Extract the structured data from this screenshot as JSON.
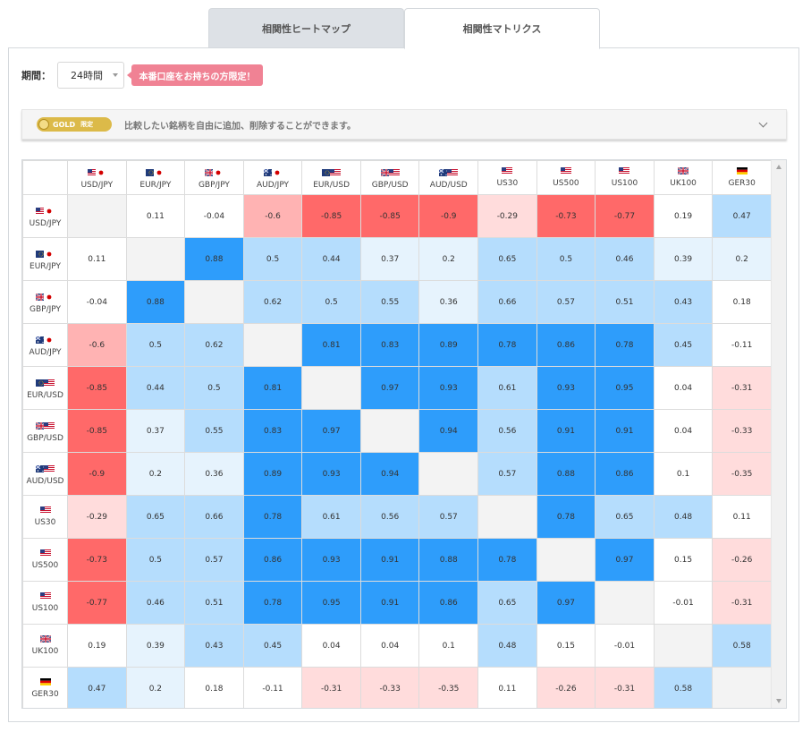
{
  "tabs": [
    {
      "label": "相関性ヒートマップ",
      "active": false
    },
    {
      "label": "相関性マトリクス",
      "active": true
    }
  ],
  "period": {
    "label": "期間：",
    "value": "24時間"
  },
  "notice": "本番口座をお持ちの方限定！",
  "gold": {
    "badge": "GOLD",
    "limited": "限定",
    "text": "比較したい銘柄を自由に追加、削除することができます。"
  },
  "colors": {
    "strong_neg": "#ff6969",
    "mid_neg": "#ffb3b3",
    "weak_neg": "#ffdcdc",
    "neutral": "#ffffff",
    "weak_pos": "#e6f3fd",
    "mid_pos": "#b5ddfd",
    "strong_pos": "#2e9dfb",
    "diagonal": "#f3f3f3"
  },
  "instruments": [
    {
      "label": "USD/JPY",
      "flags": [
        "us",
        "jp"
      ]
    },
    {
      "label": "EUR/JPY",
      "flags": [
        "eu",
        "jp"
      ]
    },
    {
      "label": "GBP/JPY",
      "flags": [
        "gb",
        "jp"
      ]
    },
    {
      "label": "AUD/JPY",
      "flags": [
        "au",
        "jp"
      ]
    },
    {
      "label": "EUR/USD",
      "flags": [
        "eu",
        "us"
      ]
    },
    {
      "label": "GBP/USD",
      "flags": [
        "gb",
        "us"
      ]
    },
    {
      "label": "AUD/USD",
      "flags": [
        "au",
        "us"
      ]
    },
    {
      "label": "US30",
      "flags": [
        "us"
      ]
    },
    {
      "label": "US500",
      "flags": [
        "us"
      ]
    },
    {
      "label": "US100",
      "flags": [
        "us"
      ]
    },
    {
      "label": "UK100",
      "flags": [
        "gb"
      ]
    },
    {
      "label": "GER30",
      "flags": [
        "de"
      ]
    }
  ],
  "matrix": [
    [
      null,
      0.11,
      -0.04,
      -0.6,
      -0.85,
      -0.85,
      -0.9,
      -0.29,
      -0.73,
      -0.77,
      0.19,
      0.47
    ],
    [
      0.11,
      null,
      0.88,
      0.5,
      0.44,
      0.37,
      0.2,
      0.65,
      0.5,
      0.46,
      0.39,
      0.2
    ],
    [
      -0.04,
      0.88,
      null,
      0.62,
      0.5,
      0.55,
      0.36,
      0.66,
      0.57,
      0.51,
      0.43,
      0.18
    ],
    [
      -0.6,
      0.5,
      0.62,
      null,
      0.81,
      0.83,
      0.89,
      0.78,
      0.86,
      0.78,
      0.45,
      -0.11
    ],
    [
      -0.85,
      0.44,
      0.5,
      0.81,
      null,
      0.97,
      0.93,
      0.61,
      0.93,
      0.95,
      0.04,
      -0.31
    ],
    [
      -0.85,
      0.37,
      0.55,
      0.83,
      0.97,
      null,
      0.94,
      0.56,
      0.91,
      0.91,
      0.04,
      -0.33
    ],
    [
      -0.9,
      0.2,
      0.36,
      0.89,
      0.93,
      0.94,
      null,
      0.57,
      0.88,
      0.86,
      0.1,
      -0.35
    ],
    [
      -0.29,
      0.65,
      0.66,
      0.78,
      0.61,
      0.56,
      0.57,
      null,
      0.78,
      0.65,
      0.48,
      0.11
    ],
    [
      -0.73,
      0.5,
      0.57,
      0.86,
      0.93,
      0.91,
      0.88,
      0.78,
      null,
      0.97,
      0.15,
      -0.26
    ],
    [
      -0.77,
      0.46,
      0.51,
      0.78,
      0.95,
      0.91,
      0.86,
      0.65,
      0.97,
      null,
      -0.01,
      -0.31
    ],
    [
      0.19,
      0.39,
      0.43,
      0.45,
      0.04,
      0.04,
      0.1,
      0.48,
      0.15,
      -0.01,
      null,
      0.58
    ],
    [
      0.47,
      0.2,
      0.18,
      -0.11,
      -0.31,
      -0.33,
      -0.35,
      0.11,
      -0.26,
      -0.31,
      0.58,
      null
    ]
  ]
}
